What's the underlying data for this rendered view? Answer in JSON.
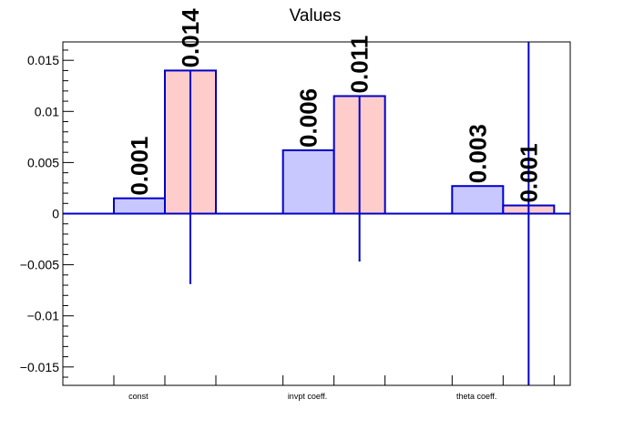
{
  "chart_data": {
    "type": "bar",
    "title": "Values",
    "xlabel": "",
    "ylabel": "",
    "categories": [
      "const",
      "invpt coeff.",
      "theta coeff."
    ],
    "ylim": [
      -0.0168,
      0.0168
    ],
    "yticks": [
      {
        "value": 0.015,
        "label": "0.015"
      },
      {
        "value": 0.01,
        "label": "0.01"
      },
      {
        "value": 0.005,
        "label": "0.005"
      },
      {
        "value": 0,
        "label": "0"
      },
      {
        "value": -0.005,
        "label": "−0.005"
      },
      {
        "value": -0.01,
        "label": "−0.01"
      },
      {
        "value": -0.015,
        "label": "−0.015"
      }
    ],
    "series": [
      {
        "values": [
          0.0015,
          0.0062,
          0.0027
        ],
        "value_labels": [
          "0.001",
          "0.006",
          "0.003"
        ],
        "errors": [
          null,
          null,
          null
        ],
        "fill": "#c8c8ff",
        "stroke": "#0000cc"
      },
      {
        "values": [
          0.014,
          0.0115,
          0.0008
        ],
        "value_labels": [
          "0.014",
          "0.011",
          "0.001"
        ],
        "errors": [
          {
            "low": -0.0068,
            "high": 0.014
          },
          {
            "low": -0.0046,
            "high": 0.0115
          },
          {
            "low": -0.0168,
            "high": 0.0168
          }
        ],
        "fill": "#ffcccc",
        "stroke": "#0000cc"
      }
    ],
    "grid": false,
    "legend": "none",
    "colors": {
      "axis": "#000000",
      "zero_line": "#0000cc",
      "error_bar": "#0000cc"
    }
  }
}
